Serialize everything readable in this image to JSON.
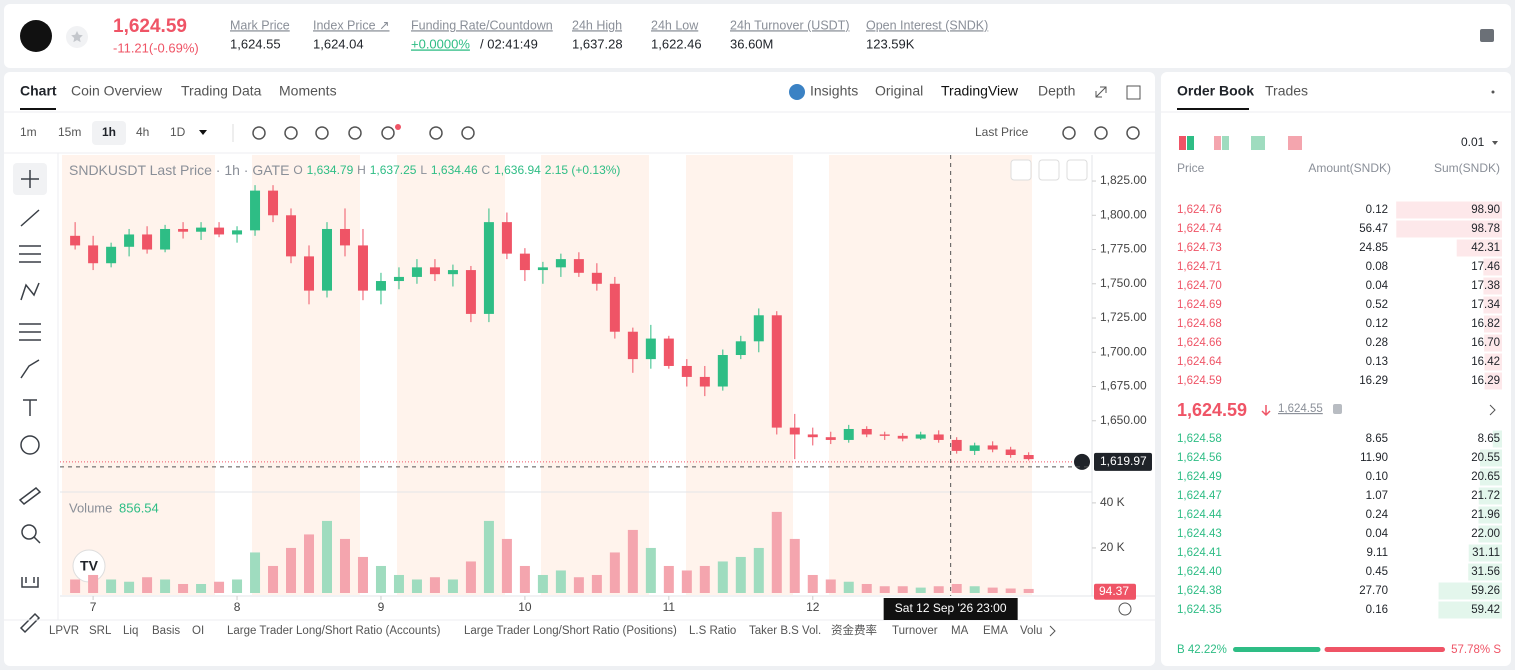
{
  "header": {
    "price": "1,624.59",
    "change": "-11.21(-0.69%)",
    "stats": [
      {
        "label": "Mark Price",
        "value": "1,624.55"
      },
      {
        "label": "Index Price ↗",
        "value": "1,624.04"
      },
      {
        "label": "Funding Rate/Countdown",
        "value": "+0.0000%",
        "extra": "/ 02:41:49"
      },
      {
        "label": "24h High",
        "value": "1,637.28"
      },
      {
        "label": "24h Low",
        "value": "1,622.46"
      },
      {
        "label": "24h Turnover (USDT)",
        "value": "36.60M"
      },
      {
        "label": "Open Interest (SNDK)",
        "value": "123.59K"
      }
    ]
  },
  "tabs": [
    "Chart",
    "Coin Overview",
    "Trading Data",
    "Moments"
  ],
  "view_tabs": [
    "Insights",
    "Original",
    "TradingView",
    "Depth"
  ],
  "intervals": [
    "1m",
    "15m",
    "1h",
    "4h",
    "1D"
  ],
  "price_source": "Last Price",
  "indicators": [
    "LPVR",
    "SRL",
    "Liq",
    "Basis",
    "OI",
    "Large Trader Long/Short Ratio (Accounts)",
    "Large Trader Long/Short Ratio (Positions)",
    "L.S Ratio",
    "Taker B.S Vol.",
    "资金费率",
    "Turnover",
    "MA",
    "EMA",
    "Volu"
  ],
  "chart_data": [
    {
      "type": "candlestick",
      "title": "SNDKUSDT Last Price · 1h · GATE",
      "legend": [
        {
          "key": "O",
          "value": "1,634.79"
        },
        {
          "key": "H",
          "value": "1,637.25"
        },
        {
          "key": "L",
          "value": "1,634.46"
        },
        {
          "key": "C",
          "value": "1,636.94"
        }
      ],
      "change": "2.15 (+0.13%)",
      "x": [
        6.875,
        7.0,
        7.125,
        7.25,
        7.375,
        7.5,
        7.625,
        7.75,
        7.875,
        8.0,
        8.125,
        8.25,
        8.375,
        8.5,
        8.625,
        8.75,
        8.875,
        9.0,
        9.125,
        9.25,
        9.375,
        9.5,
        9.625,
        9.75,
        9.875,
        10.0,
        10.125,
        10.25,
        10.375,
        10.5,
        10.625,
        10.75,
        10.875,
        11.0,
        11.125,
        11.25,
        11.375,
        11.5,
        11.625,
        11.75,
        11.875,
        12.0,
        12.125,
        12.25,
        12.375,
        12.5,
        12.625,
        12.75,
        12.875,
        13.0,
        13.125,
        13.25,
        13.375,
        13.5
      ],
      "open": [
        1785,
        1778,
        1765,
        1777,
        1786,
        1775,
        1790,
        1788,
        1791,
        1786,
        1789,
        1818,
        1800,
        1770,
        1745,
        1790,
        1778,
        1745,
        1752,
        1755,
        1762,
        1757,
        1760,
        1728,
        1795,
        1772,
        1760,
        1762,
        1768,
        1758,
        1750,
        1715,
        1695,
        1710,
        1690,
        1682,
        1675,
        1698,
        1708,
        1727,
        1645,
        1640,
        1638,
        1636,
        1644,
        1640,
        1639,
        1637,
        1640,
        1636,
        1628,
        1632,
        1629,
        1625
      ],
      "high": [
        1795,
        1785,
        1780,
        1790,
        1792,
        1793,
        1795,
        1795,
        1795,
        1792,
        1822,
        1822,
        1805,
        1778,
        1795,
        1805,
        1790,
        1758,
        1762,
        1768,
        1768,
        1764,
        1763,
        1805,
        1802,
        1776,
        1766,
        1772,
        1773,
        1765,
        1755,
        1718,
        1720,
        1712,
        1695,
        1690,
        1702,
        1712,
        1732,
        1730,
        1655,
        1645,
        1642,
        1647,
        1646,
        1642,
        1641,
        1642,
        1643,
        1638,
        1634,
        1635,
        1631,
        1627
      ],
      "low": [
        1775,
        1760,
        1762,
        1770,
        1772,
        1773,
        1783,
        1782,
        1784,
        1780,
        1785,
        1795,
        1765,
        1735,
        1740,
        1770,
        1738,
        1735,
        1746,
        1750,
        1752,
        1748,
        1722,
        1722,
        1768,
        1752,
        1750,
        1755,
        1755,
        1745,
        1710,
        1685,
        1688,
        1688,
        1675,
        1668,
        1672,
        1695,
        1700,
        1640,
        1622,
        1632,
        1633,
        1634,
        1638,
        1636,
        1635,
        1636,
        1634,
        1626,
        1625,
        1627,
        1623,
        1621
      ],
      "close": [
        1778,
        1765,
        1777,
        1786,
        1775,
        1790,
        1788,
        1791,
        1786,
        1789,
        1818,
        1800,
        1770,
        1745,
        1790,
        1778,
        1745,
        1752,
        1755,
        1762,
        1757,
        1760,
        1728,
        1795,
        1772,
        1760,
        1762,
        1768,
        1758,
        1750,
        1715,
        1695,
        1710,
        1690,
        1682,
        1675,
        1698,
        1708,
        1727,
        1645,
        1640,
        1638,
        1636,
        1644,
        1640,
        1639,
        1637,
        1640,
        1636,
        1628,
        1632,
        1629,
        1625,
        1622
      ],
      "xlim": [
        6.77,
        13.94
      ],
      "xticks": [
        7,
        8,
        9,
        10,
        11,
        12
      ],
      "ylim": [
        1598,
        1844
      ],
      "yticks": [
        {
          "value": 1650,
          "label": "1,650.00"
        },
        {
          "value": 1675,
          "label": "1,675.00"
        },
        {
          "value": 1700,
          "label": "1,700.00"
        },
        {
          "value": 1725,
          "label": "1,725.00"
        },
        {
          "value": 1750,
          "label": "1,750.00"
        },
        {
          "value": 1775,
          "label": "1,775.00"
        },
        {
          "value": 1800,
          "label": "1,800.00"
        },
        {
          "value": 1825,
          "label": "1,825.00"
        }
      ],
      "up_color": "#2ebd85",
      "down_color": "#ef5466",
      "last_price": {
        "value": 1619.97,
        "label": "1,619.97"
      },
      "crosshair": {
        "value": 12.958,
        "label": "Sat 12 Sep '26   23:00"
      }
    },
    {
      "type": "bar",
      "title": "Volume",
      "value_label": "856.54",
      "values": [
        6000,
        8000,
        6000,
        5000,
        7000,
        6000,
        4000,
        4000,
        5000,
        6000,
        18000,
        12000,
        20000,
        26000,
        32000,
        24000,
        16000,
        12000,
        8000,
        6000,
        7000,
        6000,
        14000,
        32000,
        24000,
        12000,
        8000,
        10000,
        7000,
        8000,
        18000,
        28000,
        20000,
        12000,
        10000,
        12000,
        14000,
        16000,
        20000,
        36000,
        24000,
        8000,
        6000,
        5000,
        4000,
        3000,
        3000,
        2400,
        3000,
        4000,
        3000,
        2400,
        2000,
        1800
      ],
      "ylim": [
        0,
        43500
      ],
      "yticks": [
        {
          "value": 20000,
          "label": "20 K"
        },
        {
          "value": 40000,
          "label": "40 K"
        }
      ],
      "up_color": "#9fdcbf",
      "down_color": "#f4a5ae",
      "last_value": {
        "value": 94.37,
        "label": "94.37"
      }
    }
  ],
  "order_book": {
    "tabs": [
      "Order Book",
      "Trades"
    ],
    "precision": "0.01",
    "columns": [
      "Price",
      "Amount(SNDK)",
      "Sum(SNDK)"
    ],
    "asks": [
      [
        "1,624.76",
        "0.12",
        "98.90"
      ],
      [
        "1,624.74",
        "56.47",
        "98.78"
      ],
      [
        "1,624.73",
        "24.85",
        "42.31"
      ],
      [
        "1,624.71",
        "0.08",
        "17.46"
      ],
      [
        "1,624.70",
        "0.04",
        "17.38"
      ],
      [
        "1,624.69",
        "0.52",
        "17.34"
      ],
      [
        "1,624.68",
        "0.12",
        "16.82"
      ],
      [
        "1,624.66",
        "0.28",
        "16.70"
      ],
      [
        "1,624.64",
        "0.13",
        "16.42"
      ],
      [
        "1,624.59",
        "16.29",
        "16.29"
      ]
    ],
    "mid": {
      "price": "1,624.59",
      "mark": "1,624.55"
    },
    "bids": [
      [
        "1,624.58",
        "8.65",
        "8.65"
      ],
      [
        "1,624.56",
        "11.90",
        "20.55"
      ],
      [
        "1,624.49",
        "0.10",
        "20.65"
      ],
      [
        "1,624.47",
        "1.07",
        "21.72"
      ],
      [
        "1,624.44",
        "0.24",
        "21.96"
      ],
      [
        "1,624.43",
        "0.04",
        "22.00"
      ],
      [
        "1,624.41",
        "9.11",
        "31.11"
      ],
      [
        "1,624.40",
        "0.45",
        "31.56"
      ],
      [
        "1,624.38",
        "27.70",
        "59.26"
      ],
      [
        "1,624.35",
        "0.16",
        "59.42"
      ]
    ],
    "ratio": {
      "buy": 42.22,
      "sell": 57.78,
      "buy_label": "B 42.22%",
      "sell_label": "57.78% S"
    }
  }
}
